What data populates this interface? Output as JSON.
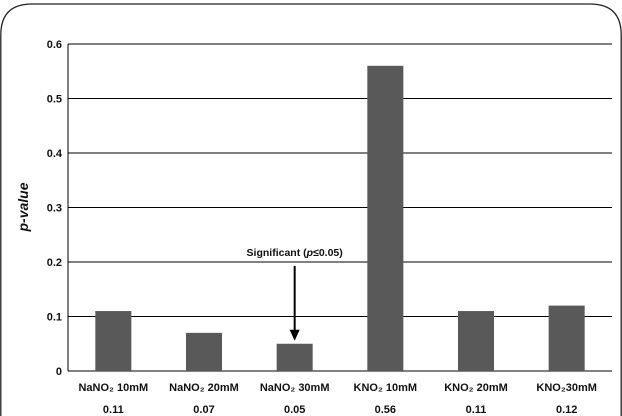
{
  "chart_data": {
    "type": "bar",
    "categories": [
      "NaNO₂ 10mM",
      "NaNO₂ 20mM",
      "NaNO₂ 30mM",
      "KNO₂ 10mM",
      "KNO₂ 20mM",
      "KNO₂30mM"
    ],
    "values": [
      0.11,
      0.07,
      0.05,
      0.56,
      0.11,
      0.12
    ],
    "value_labels": [
      "0.11",
      "0.07",
      "0.05",
      "0.56",
      "0.11",
      "0.12"
    ],
    "title": "",
    "xlabel": "",
    "ylabel": "p-value",
    "ylim": [
      0,
      0.6
    ],
    "yticks": [
      "0",
      "0.1",
      "0.2",
      "0.3",
      "0.4",
      "0.5",
      "0.6"
    ],
    "grid": true,
    "bar_color": "#595959",
    "annotation": {
      "text": "Significant (p≤0.05)",
      "target_category": "NaNO₂ 30mM"
    }
  }
}
